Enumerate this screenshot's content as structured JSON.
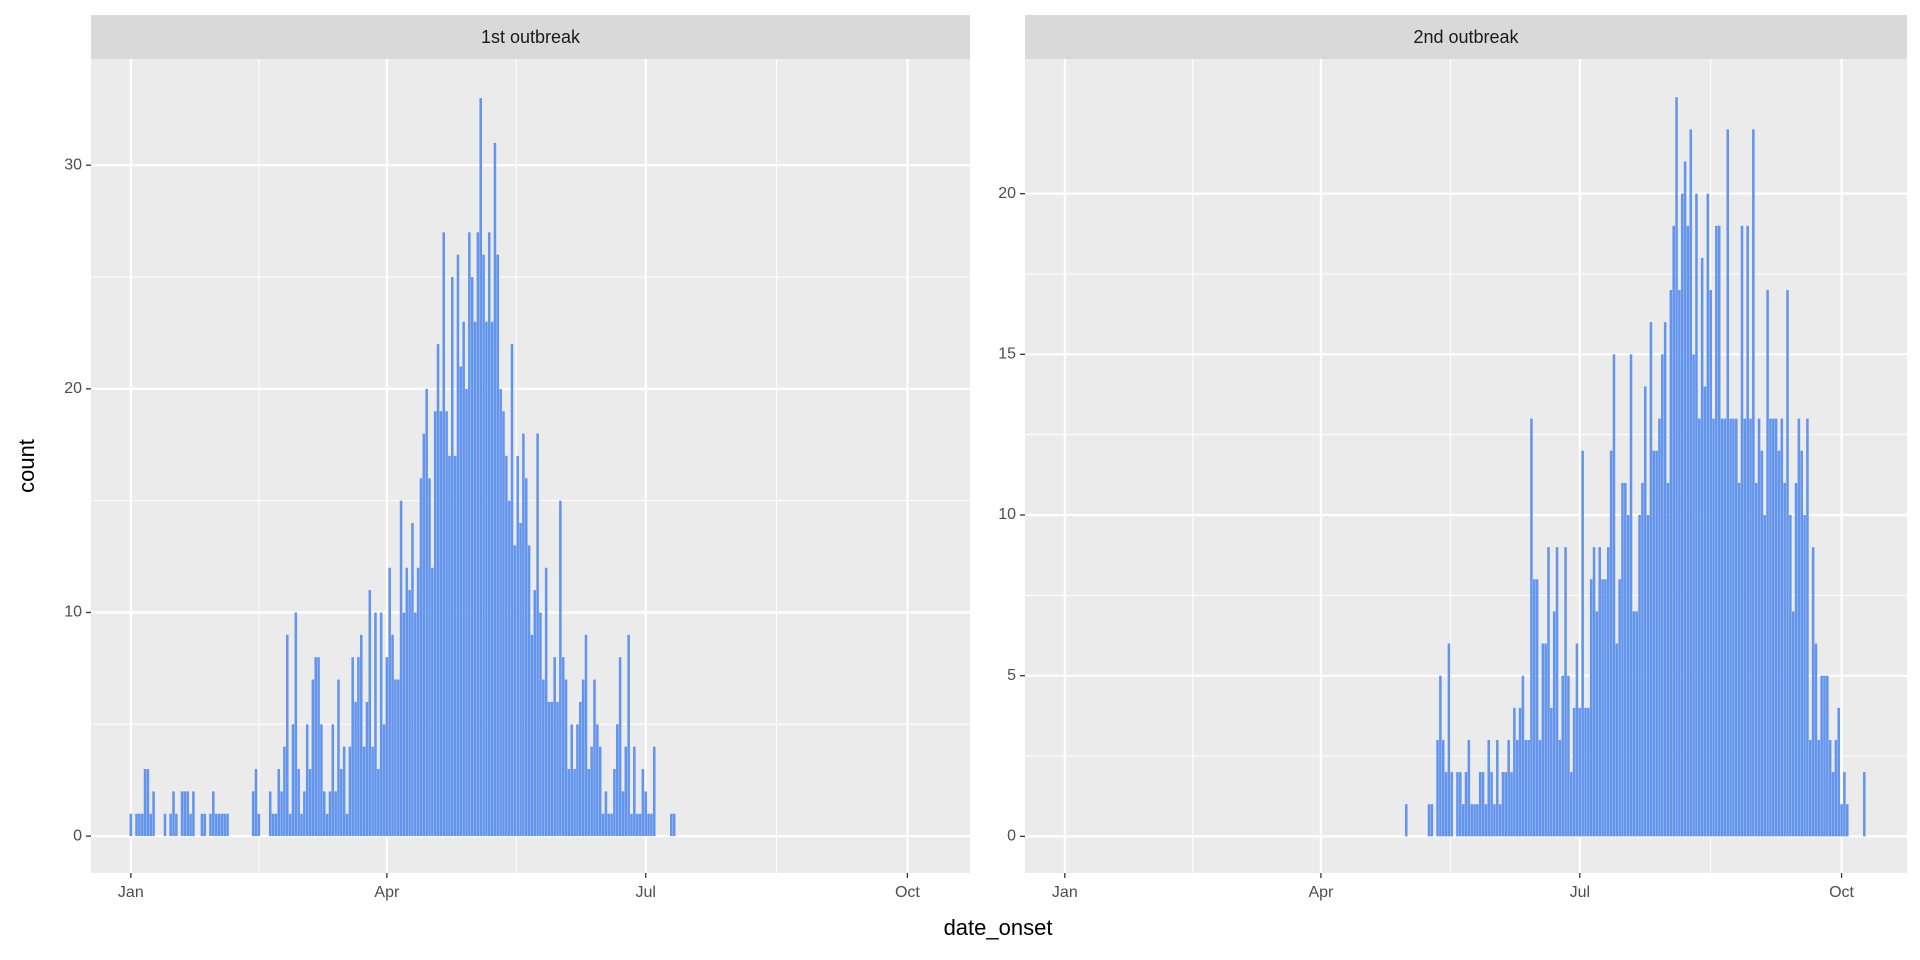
{
  "xlabel": "date_onset",
  "ylabel": "count",
  "chart_data": [
    {
      "type": "bar",
      "title": "1st outbreak",
      "color": "#6495ed",
      "grid": true,
      "xlim": [
        -14,
        295
      ],
      "ylim": [
        -1.65,
        34.75
      ],
      "xticks": [
        {
          "value": 0,
          "label": "Jan"
        },
        {
          "value": 90,
          "label": "Apr"
        },
        {
          "value": 181,
          "label": "Jul"
        },
        {
          "value": 273,
          "label": "Oct"
        }
      ],
      "yticks": [
        0,
        10,
        20,
        30
      ],
      "x": [
        0,
        1,
        2,
        3,
        4,
        5,
        6,
        7,
        8,
        9,
        10,
        11,
        12,
        13,
        14,
        15,
        16,
        17,
        18,
        19,
        20,
        21,
        22,
        23,
        24,
        25,
        26,
        27,
        28,
        29,
        30,
        31,
        32,
        33,
        34,
        35,
        36,
        37,
        38,
        39,
        40,
        41,
        42,
        43,
        44,
        45,
        46,
        47,
        48,
        49,
        50,
        51,
        52,
        53,
        54,
        55,
        56,
        57,
        58,
        59,
        60,
        61,
        62,
        63,
        64,
        65,
        66,
        67,
        68,
        69,
        70,
        71,
        72,
        73,
        74,
        75,
        76,
        77,
        78,
        79,
        80,
        81,
        82,
        83,
        84,
        85,
        86,
        87,
        88,
        89,
        90,
        91,
        92,
        93,
        94,
        95,
        96,
        97,
        98,
        99,
        100,
        101,
        102,
        103,
        104,
        105,
        106,
        107,
        108,
        109,
        110,
        111,
        112,
        113,
        114,
        115,
        116,
        117,
        118,
        119,
        120,
        121,
        122,
        123,
        124,
        125,
        126,
        127,
        128,
        129,
        130,
        131,
        132,
        133,
        134,
        135,
        136,
        137,
        138,
        139,
        140,
        141,
        142,
        143,
        144,
        145,
        146,
        147,
        148,
        149,
        150,
        151,
        152,
        153,
        154,
        155,
        156,
        157,
        158,
        159,
        160,
        161,
        162,
        163,
        164,
        165,
        166,
        167,
        168,
        169,
        170,
        171,
        172,
        173,
        174,
        175,
        176,
        177,
        178,
        179,
        180,
        181,
        182,
        183,
        184,
        185,
        186,
        187,
        188,
        189,
        190,
        191
      ],
      "values": [
        1,
        0,
        1,
        1,
        1,
        3,
        3,
        1,
        2,
        0,
        0,
        0,
        1,
        0,
        1,
        2,
        1,
        0,
        2,
        2,
        2,
        1,
        2,
        0,
        0,
        1,
        1,
        0,
        1,
        2,
        1,
        1,
        1,
        1,
        1,
        0,
        0,
        0,
        0,
        0,
        0,
        0,
        0,
        2,
        3,
        1,
        0,
        0,
        0,
        2,
        1,
        1,
        3,
        2,
        4,
        9,
        1,
        5,
        10,
        3,
        1,
        2,
        5,
        3,
        7,
        8,
        8,
        5,
        2,
        1,
        2,
        5,
        2,
        7,
        3,
        4,
        1,
        4,
        8,
        6,
        8,
        9,
        4,
        6,
        11,
        4,
        10,
        3,
        10,
        5,
        8,
        12,
        9,
        7,
        7,
        15,
        10,
        12,
        11,
        14,
        10,
        12,
        16,
        18,
        20,
        16,
        12,
        19,
        22,
        19,
        27,
        19,
        17,
        25,
        17,
        26,
        21,
        23,
        20,
        27,
        25,
        23,
        27,
        33,
        26,
        23,
        27,
        23,
        31,
        26,
        20,
        19,
        17,
        15,
        22,
        13,
        17,
        14,
        18,
        16,
        13,
        9,
        11,
        18,
        10,
        7,
        12,
        6,
        6,
        8,
        6,
        15,
        8,
        7,
        3,
        5,
        3,
        5,
        6,
        7,
        9,
        3,
        4,
        7,
        5,
        4,
        1,
        2,
        1,
        1,
        3,
        5,
        8,
        2,
        4,
        9,
        1,
        4,
        1,
        1,
        3,
        2,
        1,
        1,
        4,
        0,
        0,
        0,
        0,
        0,
        1,
        1
      ]
    },
    {
      "type": "bar",
      "title": "2nd outbreak",
      "color": "#6495ed",
      "grid": true,
      "xlim": [
        -14,
        296
      ],
      "ylim": [
        -1.14,
        24.19
      ],
      "xticks": [
        {
          "value": 0,
          "label": "Jan"
        },
        {
          "value": 90,
          "label": "Apr"
        },
        {
          "value": 181,
          "label": "Jul"
        },
        {
          "value": 273,
          "label": "Oct"
        }
      ],
      "yticks": [
        0,
        5,
        10,
        15,
        20
      ],
      "x": [
        120,
        121,
        122,
        123,
        124,
        125,
        126,
        127,
        128,
        129,
        130,
        131,
        132,
        133,
        134,
        135,
        136,
        137,
        138,
        139,
        140,
        141,
        142,
        143,
        144,
        145,
        146,
        147,
        148,
        149,
        150,
        151,
        152,
        153,
        154,
        155,
        156,
        157,
        158,
        159,
        160,
        161,
        162,
        163,
        164,
        165,
        166,
        167,
        168,
        169,
        170,
        171,
        172,
        173,
        174,
        175,
        176,
        177,
        178,
        179,
        180,
        181,
        182,
        183,
        184,
        185,
        186,
        187,
        188,
        189,
        190,
        191,
        192,
        193,
        194,
        195,
        196,
        197,
        198,
        199,
        200,
        201,
        202,
        203,
        204,
        205,
        206,
        207,
        208,
        209,
        210,
        211,
        212,
        213,
        214,
        215,
        216,
        217,
        218,
        219,
        220,
        221,
        222,
        223,
        224,
        225,
        226,
        227,
        228,
        229,
        230,
        231,
        232,
        233,
        234,
        235,
        236,
        237,
        238,
        239,
        240,
        241,
        242,
        243,
        244,
        245,
        246,
        247,
        248,
        249,
        250,
        251,
        252,
        253,
        254,
        255,
        256,
        257,
        258,
        259,
        260,
        261,
        262,
        263,
        264,
        265,
        266,
        267,
        268,
        269,
        270,
        271,
        272,
        273,
        274,
        275,
        276,
        277,
        278,
        279,
        280,
        281
      ],
      "values": [
        1,
        0,
        0,
        0,
        0,
        0,
        0,
        0,
        1,
        1,
        0,
        3,
        5,
        3,
        2,
        6,
        2,
        0,
        2,
        2,
        1,
        2,
        3,
        1,
        1,
        1,
        2,
        2,
        1,
        3,
        2,
        1,
        3,
        1,
        2,
        2,
        3,
        2,
        4,
        3,
        4,
        5,
        3,
        3,
        13,
        8,
        8,
        3,
        6,
        6,
        9,
        4,
        7,
        9,
        3,
        5,
        9,
        5,
        2,
        4,
        6,
        4,
        12,
        4,
        4,
        8,
        9,
        7,
        9,
        8,
        8,
        9,
        12,
        15,
        6,
        8,
        11,
        11,
        10,
        15,
        7,
        7,
        10,
        11,
        14,
        10,
        16,
        12,
        12,
        13,
        15,
        16,
        11,
        17,
        19,
        23,
        17,
        20,
        21,
        19,
        22,
        15,
        20,
        13,
        18,
        14,
        20,
        17,
        13,
        19,
        19,
        13,
        13,
        22,
        13,
        13,
        13,
        11,
        19,
        13,
        19,
        13,
        22,
        11,
        13,
        12,
        10,
        17,
        13,
        13,
        13,
        12,
        13,
        11,
        17,
        10,
        7,
        11,
        13,
        12,
        10,
        13,
        3,
        9,
        6,
        3,
        5,
        5,
        5,
        3,
        2,
        3,
        4,
        1,
        2,
        1,
        0,
        0,
        0,
        0,
        0,
        2
      ]
    }
  ]
}
